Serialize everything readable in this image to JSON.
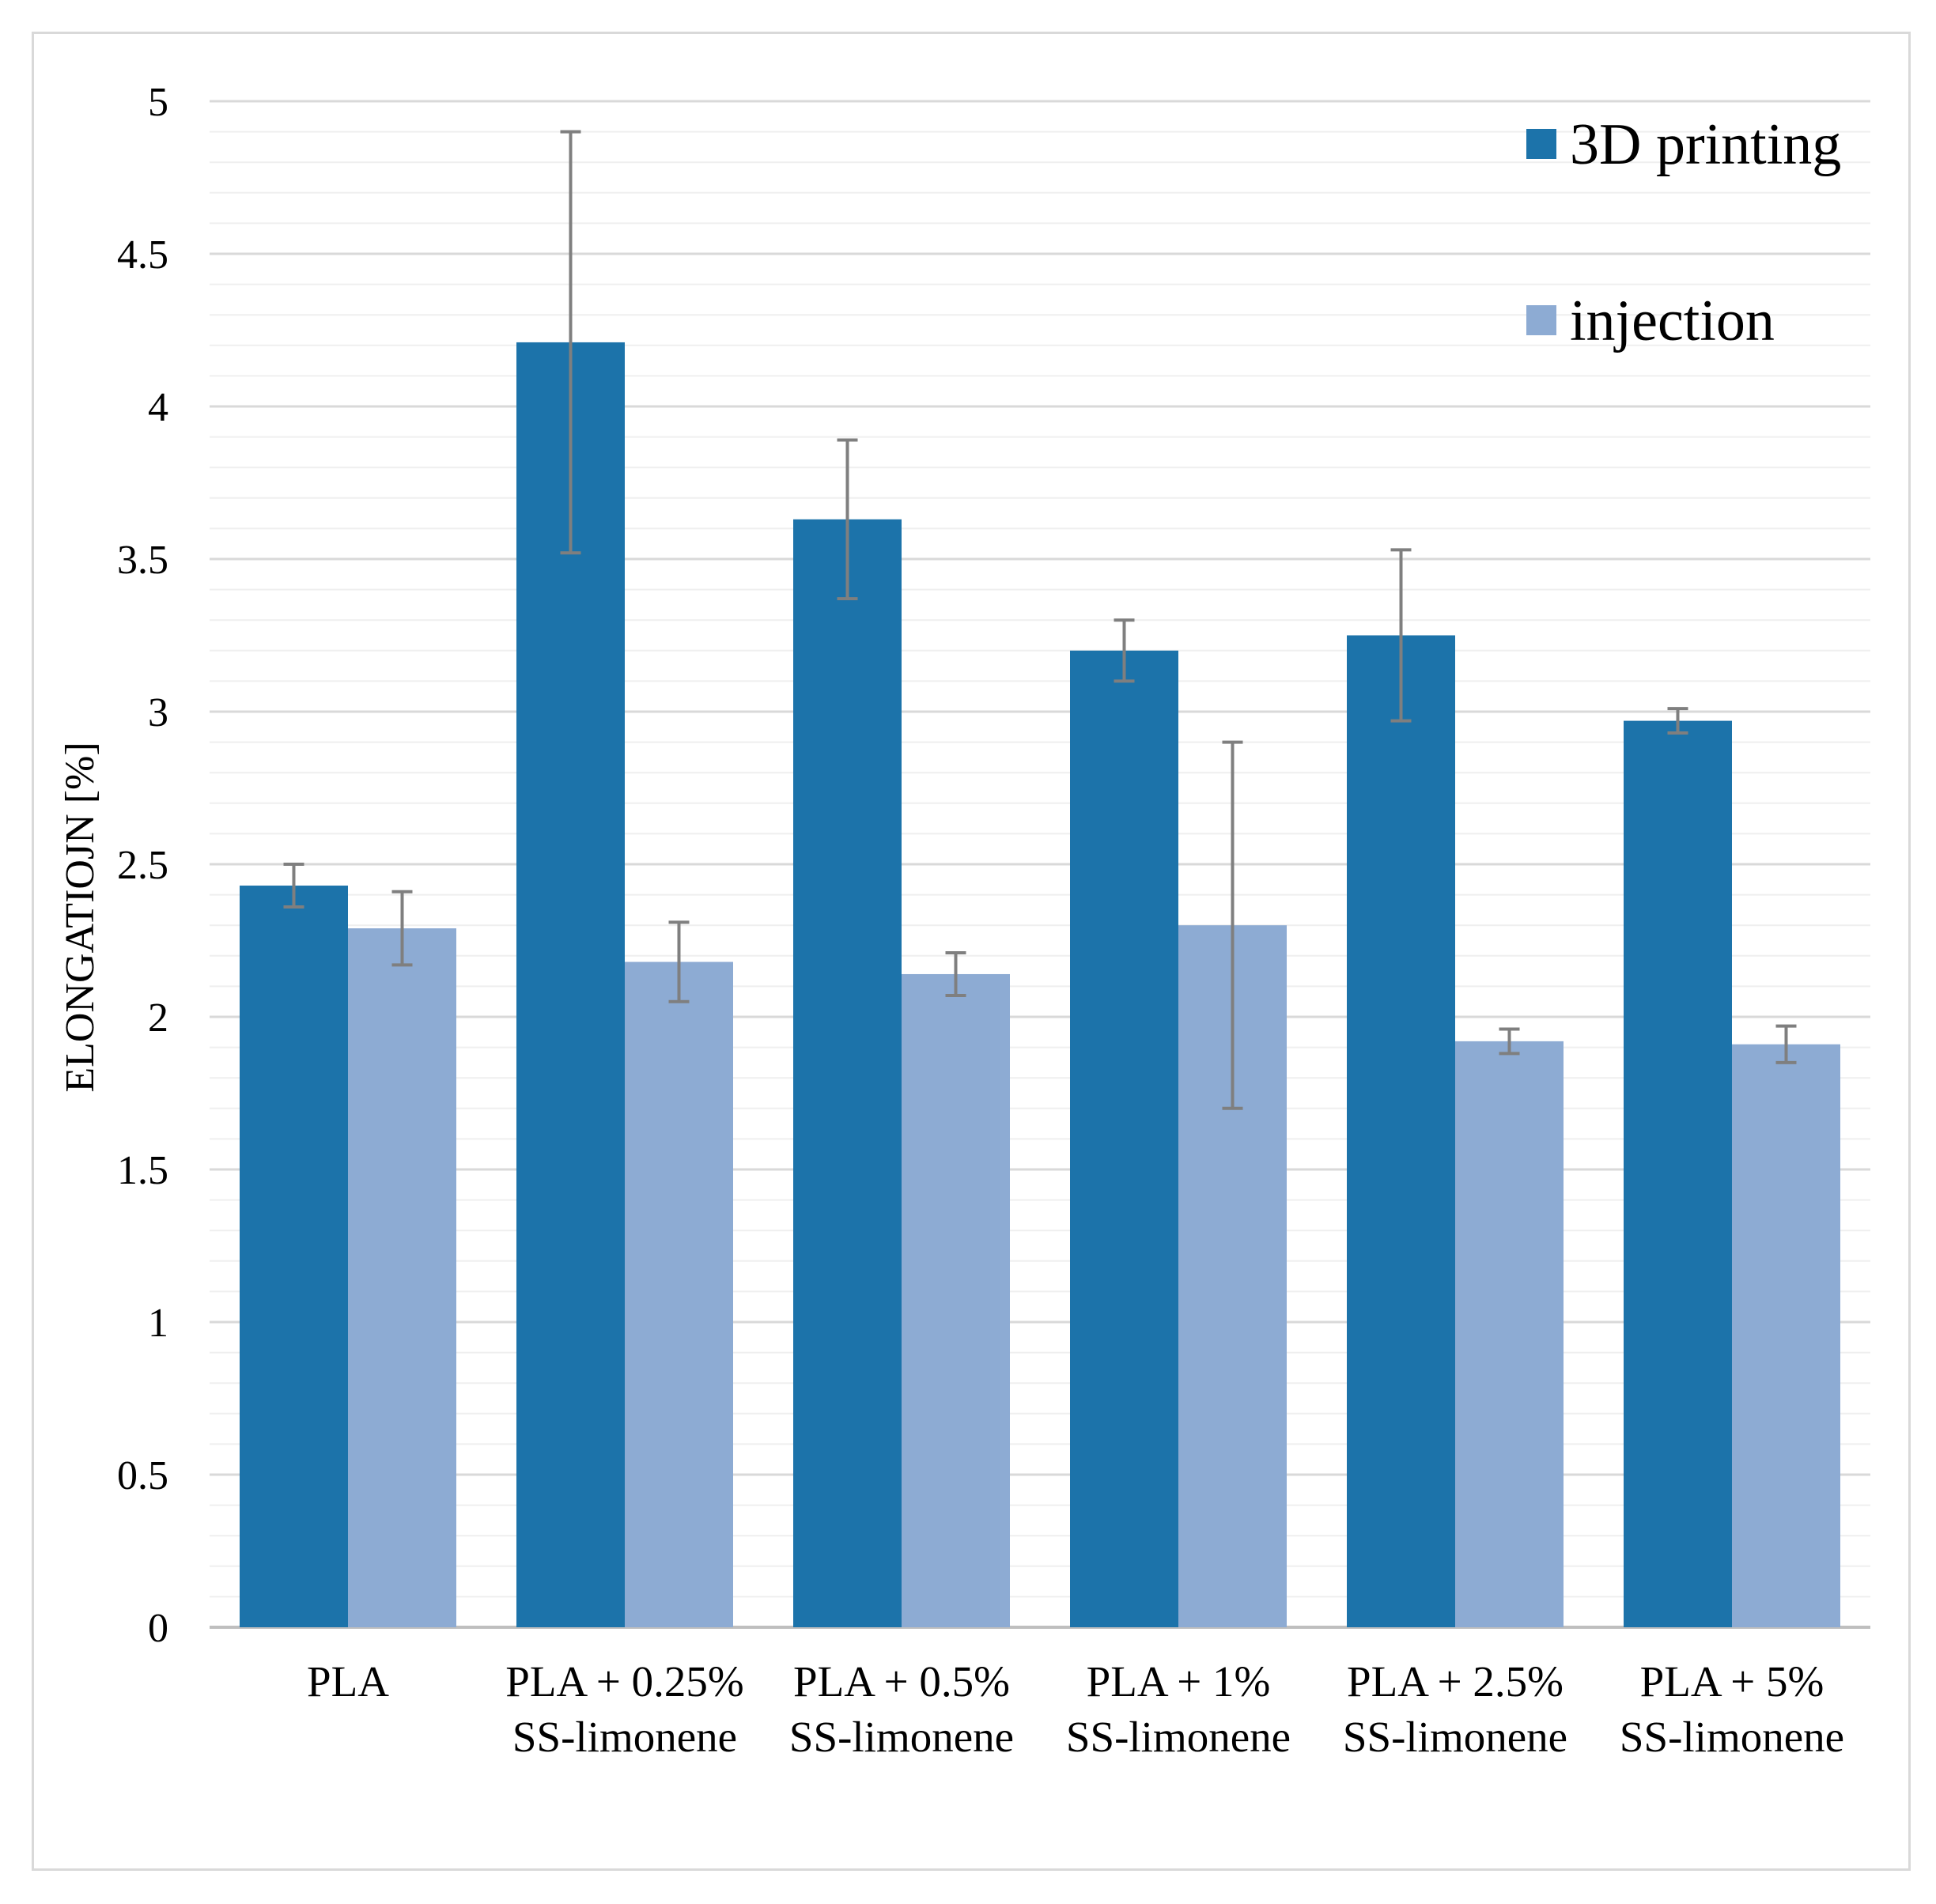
{
  "chart_data": {
    "type": "bar",
    "title": "",
    "xlabel": "",
    "ylabel": "ELONGATIOJN [%]",
    "ylim": [
      0,
      5
    ],
    "yticks": [
      "0",
      "0.5",
      "1",
      "1.5",
      "2",
      "2.5",
      "3",
      "3.5",
      "4",
      "4.5",
      "5"
    ],
    "grid": "major and minor horizontal gridlines",
    "legend_position": "top-right",
    "categories": [
      [
        "PLA"
      ],
      [
        "PLA + 0.25%",
        "SS-limonene"
      ],
      [
        "PLA + 0.5%",
        "SS-limonene"
      ],
      [
        "PLA + 1%",
        "SS-limonene"
      ],
      [
        "PLA + 2.5%",
        "SS-limonene"
      ],
      [
        "PLA + 5%",
        "SS-limonene"
      ]
    ],
    "series": [
      {
        "name": "3D printing",
        "color": "#1c73aa",
        "values": [
          2.43,
          4.21,
          3.63,
          3.2,
          3.25,
          2.97
        ],
        "errors": [
          0.07,
          0.69,
          0.26,
          0.1,
          0.28,
          0.04
        ]
      },
      {
        "name": "injection",
        "color": "#8dabd3",
        "values": [
          2.29,
          2.18,
          2.14,
          2.3,
          1.92,
          1.91
        ],
        "errors": [
          0.12,
          0.13,
          0.07,
          0.6,
          0.04,
          0.06
        ]
      }
    ],
    "error_bar_color": "#7f7f7f"
  }
}
